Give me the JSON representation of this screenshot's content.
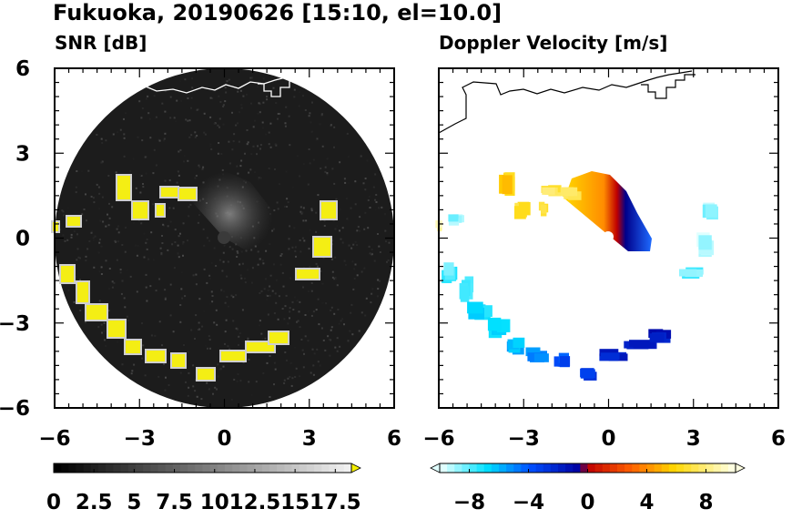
{
  "figure": {
    "title": "Fukuoka, 20190626 [15:10, el=10.0]"
  },
  "chart_data": [
    {
      "type": "heatmap",
      "title": "SNR [dB]",
      "xlim": [
        -6,
        6
      ],
      "ylim": [
        -6,
        6
      ],
      "x_ticks": [
        "−6",
        "−3",
        "0",
        "3",
        "6"
      ],
      "y_ticks": [
        "6",
        "3",
        "0",
        "−3",
        "−6"
      ],
      "colorbar": {
        "min": 0,
        "max": 18.5,
        "extend": "max",
        "tick_labels": [
          "0",
          "2.5",
          "5",
          "7.5",
          "10",
          "12.5",
          "15",
          "17.5"
        ],
        "tick_values": [
          0,
          2.5,
          5,
          7.5,
          10,
          12.5,
          15,
          17.5
        ],
        "colors": [
          "#000000",
          "#ffffff",
          "#f5f000"
        ]
      },
      "colors": {
        "background": "#1a1a1a",
        "echo": "#f4ee14",
        "coastline": "#ffffff"
      }
    },
    {
      "type": "heatmap",
      "title": "Doppler Velocity [m/s]",
      "xlim": [
        -6,
        6
      ],
      "ylim": [
        -6,
        6
      ],
      "x_ticks": [
        "−6",
        "−3",
        "0",
        "3",
        "6"
      ],
      "y_ticks": [
        "6",
        "3",
        "0",
        "−3",
        "−6"
      ],
      "colorbar": {
        "min": -10,
        "max": 10,
        "extend": "both",
        "tick_labels": [
          "−8",
          "−4",
          "0",
          "4",
          "8"
        ],
        "tick_values": [
          -8,
          -4,
          0,
          4,
          8
        ],
        "colors": [
          "#e0ffff",
          "#00e0ff",
          "#0050ff",
          "#0000a0",
          "#c00000",
          "#ff6000",
          "#ffd700",
          "#ffffe0"
        ]
      },
      "colors": {
        "coastline": "#000000"
      }
    }
  ]
}
